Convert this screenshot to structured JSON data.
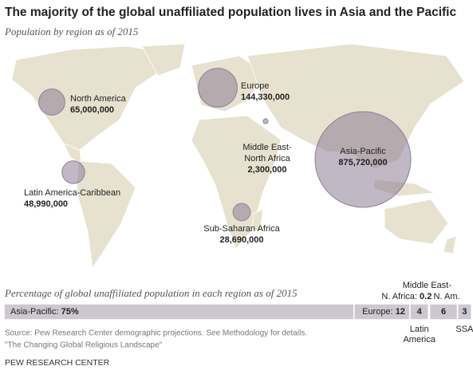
{
  "chart_data": {
    "type": "bubble-map",
    "title": "The majority of the global unaffiliated population lives in Asia and the Pacific",
    "subtitle": "Population by region as of 2015",
    "bubbles": [
      {
        "label_lines": [
          "North America"
        ],
        "value": 65000000,
        "value_label": "65,000,000"
      },
      {
        "label_lines": [
          "Europe"
        ],
        "value": 144330000,
        "value_label": "144,330,000"
      },
      {
        "label_lines": [
          "Middle East-",
          "North Africa"
        ],
        "value": 2300000,
        "value_label": "2,300,000"
      },
      {
        "label_lines": [
          "Asia-Pacific"
        ],
        "value": 875720000,
        "value_label": "875,720,000"
      },
      {
        "label_lines": [
          "Latin America-Caribbean"
        ],
        "value": 48990000,
        "value_label": "48,990,000"
      },
      {
        "label_lines": [
          "Sub-Saharan Africa"
        ],
        "value": 28690000,
        "value_label": "28,690,000"
      }
    ],
    "bar": {
      "type": "stacked-bar",
      "title": "Percentage of global unaffiliated population in each region as of 2015",
      "segments": [
        {
          "label_lines": [
            "Asia-Pacific:"
          ],
          "value": 75,
          "value_label": "75%"
        },
        {
          "label_lines": [
            "Europe:"
          ],
          "value": 12
        },
        {
          "label_lines": [
            "Latin",
            "America"
          ],
          "value": 4
        },
        {
          "label_lines": [
            "Middle East-",
            "N. Africa:"
          ],
          "value": 0.2
        },
        {
          "label_lines": [
            "N. Am."
          ],
          "value": 6
        },
        {
          "label_lines": [
            "SSA"
          ],
          "value": 3
        }
      ],
      "color": "#cdc8d0"
    },
    "bubble_color": "#8c7e96",
    "source": "Source: Pew Research Center demographic projections. See Methodology for details.",
    "note": "\"The Changing Global Religious Landscape\"",
    "footer": "PEW RESEARCH CENTER"
  }
}
